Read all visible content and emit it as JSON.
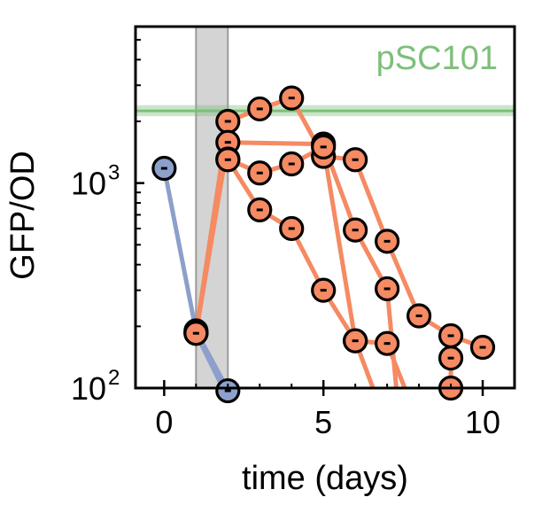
{
  "chart_data": {
    "type": "scatter",
    "xlabel": "time (days)",
    "ylabel": "GFP/OD",
    "xlim": [
      -0.9,
      11.0
    ],
    "ylim": [
      100,
      5800
    ],
    "yscale": "log",
    "xticks": [
      0,
      5,
      10
    ],
    "xtick_labels": [
      "0",
      "5",
      "10"
    ],
    "yticks": [
      100,
      1000
    ],
    "ytick_labels": [
      {
        "base": "10",
        "exp": "2"
      },
      {
        "base": "10",
        "exp": "3"
      }
    ],
    "grid": false,
    "shaded_region": {
      "x": [
        1.0,
        2.0
      ],
      "color": "#d4d4d4"
    },
    "reference_line": {
      "label": "pSC101",
      "y": 2250,
      "y_band": [
        2120,
        2400
      ],
      "color": "#7dbf7a"
    },
    "series": [
      {
        "color": "#8d9fcb",
        "points": [
          [
            0,
            1180
          ],
          [
            1,
            190
          ]
        ],
        "tail": [
          [
            1,
            190
          ],
          [
            2,
            98
          ]
        ]
      },
      {
        "color": "#8d9fcb",
        "points": [
          [
            1,
            185
          ]
        ],
        "tail": [
          [
            1,
            185
          ],
          [
            1.9,
            96
          ]
        ]
      },
      {
        "color": "#8d9fcb",
        "points": [
          [
            2,
            97
          ]
        ],
        "tail": []
      },
      {
        "color": "#f58a63",
        "points": [
          [
            1,
            185
          ],
          [
            2,
            2000
          ],
          [
            3,
            2300
          ],
          [
            4,
            2600
          ],
          [
            5,
            1350
          ],
          [
            6,
            1300
          ],
          [
            7,
            520
          ],
          [
            8,
            225
          ],
          [
            9,
            180
          ],
          [
            10,
            158
          ]
        ],
        "tail": []
      },
      {
        "color": "#f58a63",
        "points": [
          [
            1,
            185
          ],
          [
            2,
            1580
          ],
          [
            5,
            1550
          ],
          [
            6,
            590
          ],
          [
            7,
            305
          ]
        ],
        "tail": [
          [
            7,
            305
          ],
          [
            7.3,
            96
          ]
        ]
      },
      {
        "color": "#f58a63",
        "points": [
          [
            2,
            1310
          ],
          [
            3,
            1120
          ],
          [
            4,
            1240
          ],
          [
            5,
            1500
          ],
          [
            6,
            170
          ],
          [
            7,
            165
          ]
        ],
        "tail": [
          [
            7,
            165
          ],
          [
            7.6,
            96
          ]
        ]
      },
      {
        "color": "#f58a63",
        "points": [
          [
            2,
            1300
          ],
          [
            3,
            740
          ],
          [
            4,
            600
          ],
          [
            5,
            300
          ],
          [
            6,
            170
          ]
        ],
        "tail": [
          [
            6,
            170
          ],
          [
            6.6,
            96
          ]
        ]
      },
      {
        "color": "#f58a63",
        "points": [
          [
            9,
            140
          ],
          [
            9,
            100
          ]
        ],
        "tail": [
          [
            9,
            100
          ],
          [
            9.1,
            96
          ]
        ]
      }
    ]
  }
}
